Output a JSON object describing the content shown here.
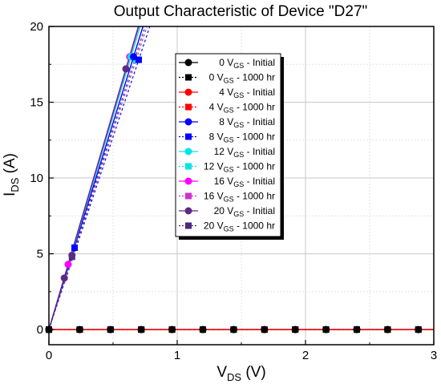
{
  "chart_data": {
    "type": "scatter",
    "title": "Output Characteristic of Device \"D27\"",
    "xlabel": {
      "main": "V",
      "sub": "DS",
      "unit": " (V)"
    },
    "ylabel": {
      "main": "I",
      "sub": "DS",
      "unit": " (A)"
    },
    "xlim": [
      0,
      3
    ],
    "ylim": [
      -1,
      20
    ],
    "xticks": [
      0,
      1,
      2,
      3
    ],
    "yticks": [
      0,
      5,
      10,
      15,
      20
    ],
    "grid": true,
    "legend_position": "top-right",
    "off_state_x": [
      0,
      0.24,
      0.48,
      0.72,
      0.96,
      1.2,
      1.44,
      1.68,
      1.92,
      2.16,
      2.4,
      2.64,
      2.88
    ],
    "series": [
      {
        "name": "0 V",
        "sub": "GS",
        "tail": " - Initial",
        "color": "#000000",
        "marker": "circle",
        "dash": false,
        "x": [
          0,
          0.24,
          0.48,
          0.72,
          0.96,
          1.2,
          1.44,
          1.68,
          1.92,
          2.16,
          2.4,
          2.64,
          2.88
        ],
        "y": [
          0,
          0,
          0,
          0,
          0,
          0,
          0,
          0,
          0,
          0,
          0,
          0,
          0
        ]
      },
      {
        "name": "0 V",
        "sub": "GS",
        "tail": " - 1000 hr",
        "color": "#000000",
        "marker": "square",
        "dash": true,
        "x": [
          0,
          0.24,
          0.48,
          0.72,
          0.96,
          1.2,
          1.44,
          1.68,
          1.92,
          2.16,
          2.4,
          2.64,
          2.88
        ],
        "y": [
          0,
          0,
          0,
          0,
          0,
          0,
          0,
          0,
          0,
          0,
          0,
          0,
          0
        ]
      },
      {
        "name": "4 V",
        "sub": "GS",
        "tail": " - Initial",
        "color": "#ff0000",
        "marker": "circle",
        "dash": false,
        "x": [
          0,
          0.24,
          0.48,
          0.72,
          0.96,
          1.2,
          1.44,
          1.68,
          1.92,
          2.16,
          2.4,
          2.64,
          2.88
        ],
        "y": [
          0,
          0,
          0,
          0,
          0,
          0,
          0,
          0,
          0,
          0,
          0,
          0,
          0
        ]
      },
      {
        "name": "4 V",
        "sub": "GS",
        "tail": " - 1000 hr",
        "color": "#ff0000",
        "marker": "square",
        "dash": true,
        "x": [
          0,
          0.24,
          0.48,
          0.72,
          0.96,
          1.2,
          1.44,
          1.68,
          1.92,
          2.16,
          2.4,
          2.64,
          2.88
        ],
        "y": [
          0,
          0,
          0,
          0,
          0,
          0,
          0,
          0,
          0,
          0,
          0,
          0,
          0
        ]
      },
      {
        "name": "8 V",
        "sub": "GS",
        "tail": " - Initial",
        "color": "#0000ff",
        "marker": "circle",
        "dash": false,
        "x": [
          0,
          0.66
        ],
        "y": [
          0,
          18.0
        ]
      },
      {
        "name": "8 V",
        "sub": "GS",
        "tail": " - 1000 hr",
        "color": "#0000ff",
        "marker": "square",
        "dash": true,
        "x": [
          0,
          0.2,
          0.7
        ],
        "y": [
          0,
          5.4,
          17.8
        ]
      },
      {
        "name": "12 V",
        "sub": "GS",
        "tail": " - Initial",
        "color": "#00e5e5",
        "marker": "circle",
        "dash": false,
        "x": [
          0,
          0.64
        ],
        "y": [
          0,
          18.0
        ]
      },
      {
        "name": "12 V",
        "sub": "GS",
        "tail": " - 1000 hr",
        "color": "#00e5e5",
        "marker": "square",
        "dash": true,
        "x": [
          0,
          0.68
        ],
        "y": [
          0,
          17.8
        ]
      },
      {
        "name": "16 V",
        "sub": "GS",
        "tail": " - Initial",
        "color": "#ff00ff",
        "marker": "circle",
        "dash": false,
        "x": [
          0,
          0.15,
          0.63
        ],
        "y": [
          0,
          4.3,
          18.0
        ]
      },
      {
        "name": "16 V",
        "sub": "GS",
        "tail": " - 1000 hr",
        "color": "#cc33cc",
        "marker": "square",
        "dash": true,
        "x": [
          0,
          0.68
        ],
        "y": [
          0,
          17.8
        ]
      },
      {
        "name": "20 V",
        "sub": "GS",
        "tail": " - Initial",
        "color": "#5b2a86",
        "marker": "circle",
        "dash": false,
        "x": [
          0,
          0.12,
          0.18,
          0.6
        ],
        "y": [
          0,
          3.4,
          4.9,
          17.2
        ]
      },
      {
        "name": "20 V",
        "sub": "GS",
        "tail": " - 1000 hr",
        "color": "#4b2a7a",
        "marker": "square",
        "dash": true,
        "x": [
          0,
          0.18
        ],
        "y": [
          0,
          4.8
        ]
      }
    ]
  }
}
